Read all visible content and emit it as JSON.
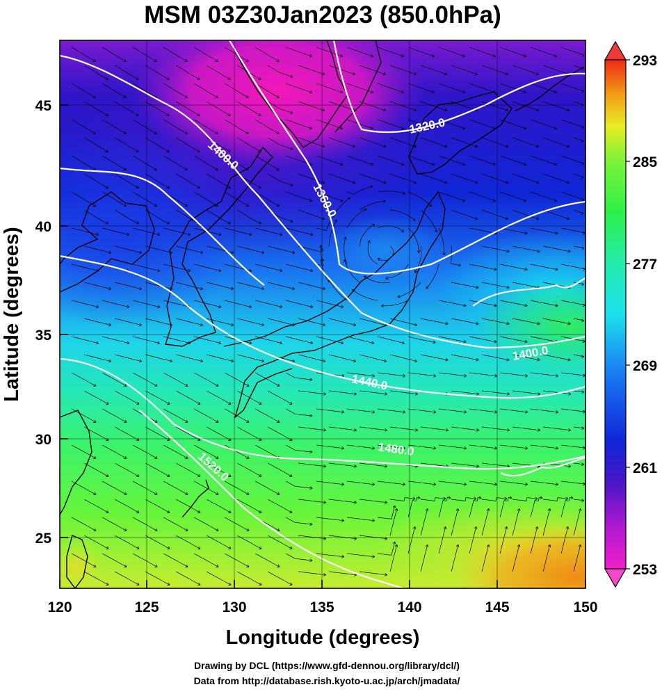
{
  "title": "MSM 03Z30Jan2023 (850.0hPa)",
  "axes": {
    "xlabel": "Longitude (degrees)",
    "ylabel": "Latitude  (degrees)",
    "x_ticks": [
      "120",
      "125",
      "130",
      "135",
      "140",
      "145",
      "150"
    ],
    "y_ticks": [
      "45",
      "40",
      "35",
      "30",
      "25"
    ]
  },
  "colorbar": {
    "ticks": [
      "293",
      "285",
      "277",
      "269",
      "261",
      "253"
    ],
    "min": 253,
    "max": 293
  },
  "contours": [
    {
      "label": "1320.0"
    },
    {
      "label": "1360.0"
    },
    {
      "label": "1400.0"
    },
    {
      "label": "1400.0"
    },
    {
      "label": "1440.0"
    },
    {
      "label": "1480.0"
    },
    {
      "label": "1520.0"
    }
  ],
  "credits": {
    "line1": "Drawing by DCL (https://www.gfd-dennou.org/library/dcl/)",
    "line2": "Data from http://database.rish.kyoto-u.ac.jp/arch/jmadata/"
  }
}
